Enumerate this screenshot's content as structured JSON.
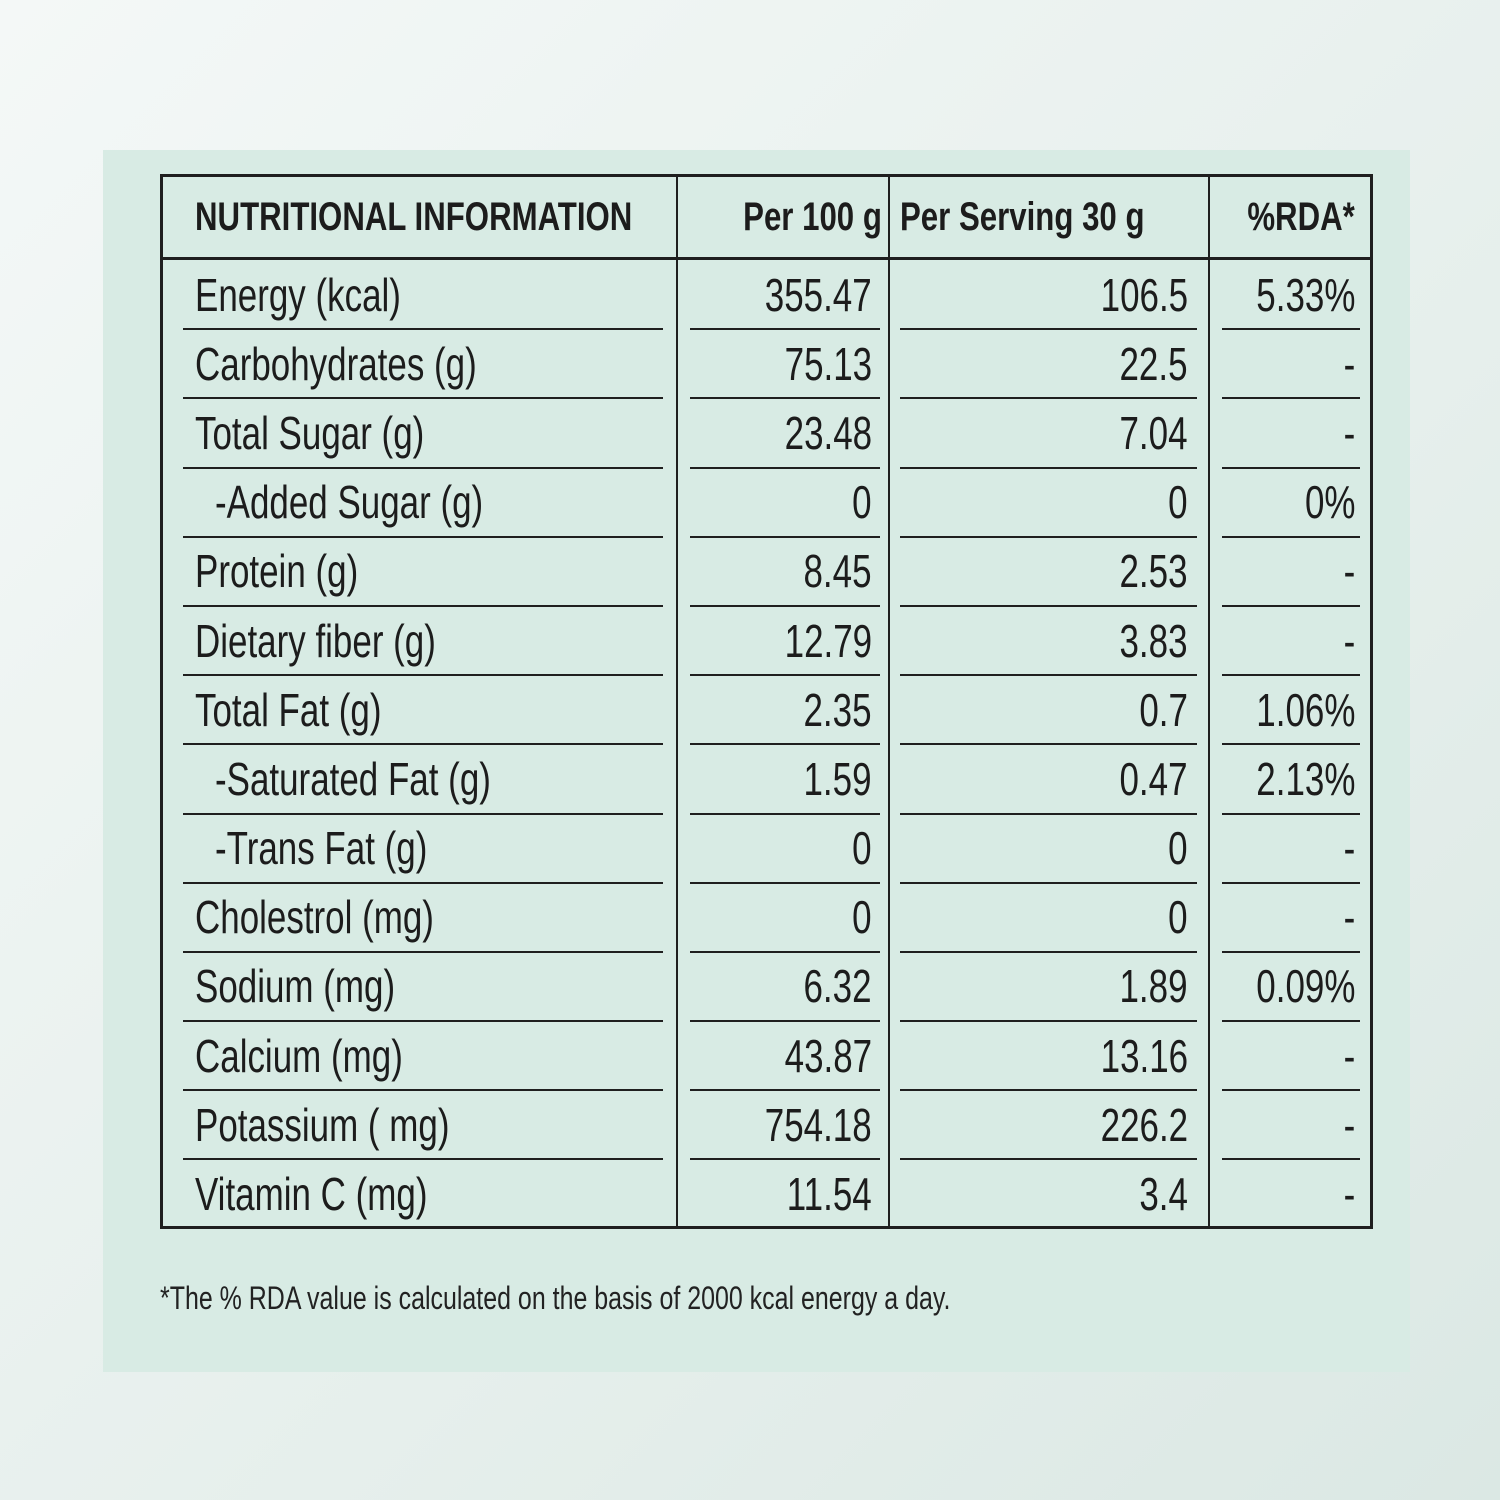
{
  "header": {
    "col_nutrient": "NUTRITIONAL INFORMATION",
    "col_per100": "Per 100 g",
    "col_serving": "Per Serving 30 g",
    "col_rda": "%RDA*"
  },
  "rows": [
    {
      "name": "Energy (kcal)",
      "per100": "355.47",
      "serving": "106.5",
      "rda": "5.33%",
      "indent": false
    },
    {
      "name": "Carbohydrates (g)",
      "per100": "75.13",
      "serving": "22.5",
      "rda": "-",
      "indent": false
    },
    {
      "name": "Total Sugar (g)",
      "per100": "23.48",
      "serving": "7.04",
      "rda": "-",
      "indent": false
    },
    {
      "name": "-Added Sugar (g)",
      "per100": "0",
      "serving": "0",
      "rda": "0%",
      "indent": true
    },
    {
      "name": "Protein (g)",
      "per100": "8.45",
      "serving": "2.53",
      "rda": "-",
      "indent": false
    },
    {
      "name": "Dietary fiber (g)",
      "per100": "12.79",
      "serving": "3.83",
      "rda": "-",
      "indent": false
    },
    {
      "name": "Total Fat (g)",
      "per100": "2.35",
      "serving": "0.7",
      "rda": "1.06%",
      "indent": false
    },
    {
      "name": "-Saturated Fat (g)",
      "per100": "1.59",
      "serving": "0.47",
      "rda": "2.13%",
      "indent": true
    },
    {
      "name": "-Trans Fat (g)",
      "per100": "0",
      "serving": "0",
      "rda": "-",
      "indent": true
    },
    {
      "name": "Cholestrol (mg)",
      "per100": "0",
      "serving": "0",
      "rda": "-",
      "indent": false
    },
    {
      "name": "Sodium (mg)",
      "per100": "6.32",
      "serving": "1.89",
      "rda": "0.09%",
      "indent": false
    },
    {
      "name": "Calcium (mg)",
      "per100": "43.87",
      "serving": "13.16",
      "rda": "-",
      "indent": false
    },
    {
      "name": "Potassium ( mg)",
      "per100": "754.18",
      "serving": "226.2",
      "rda": "-",
      "indent": false
    },
    {
      "name": "Vitamin C (mg)",
      "per100": "11.54",
      "serving": "3.4",
      "rda": "-",
      "indent": false
    }
  ],
  "footnote": "*The % RDA value is calculated on the basis of 2000 kcal energy a day.",
  "colors": {
    "panel": "#d8ebe4",
    "rule": "#1f1f1f",
    "text": "#1c1c1c"
  }
}
